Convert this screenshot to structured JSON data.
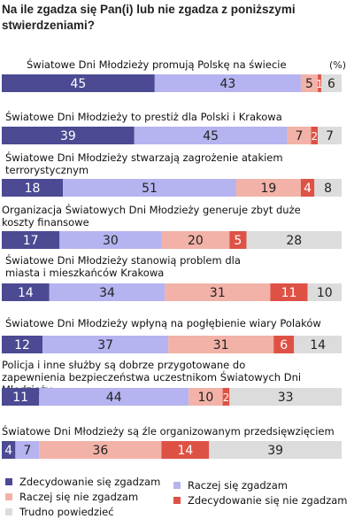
{
  "title": "Na ile zgadza się Pan(i) lub nie zgadza z poniższymi stwierdzeniami?",
  "unit_label": "(%)",
  "colors": {
    "zdecydowanie_zgadzam": "#4b4a93",
    "raczej_zgadzam": "#b5b3f0",
    "raczej_nie_zgadzam": "#f2b2a8",
    "zdecydowanie_nie_zgadzam": "#de5245",
    "trudno_powiedziec": "#dcdcdc"
  },
  "chart_data": {
    "type": "bar",
    "orientation": "horizontal",
    "stacked": true,
    "xlim": [
      0,
      100
    ],
    "grid": false,
    "legend_position": "bottom",
    "categories": [
      "Światowe Dni Młodzieży promują Polskę na świecie",
      "Światowe Dni Młodzieży to prestiż dla Polski i Krakowa",
      "Światowe Dni Młodzieży stwarzają zagrożenie atakiem terrorystycznym",
      "Organizacja Światowych Dni Młodzieży generuje zbyt duże koszty finansowe",
      "Światowe Dni Młodzieży stanowią problem dla miasta i mieszkańców Krakowa",
      "Światowe Dni Młodzieży wpłyną na pogłębienie wiary Polaków",
      "Policja i inne służby są dobrze przygotowane do zapewnienia bezpieczeństwa uczestnikom Światowych Dni Młodzieży",
      "Światowe Dni Młodzieży są źle organizowanym przedsięwzięciem"
    ],
    "series": [
      {
        "name": "Zdecydowanie się zgadzam",
        "values": [
          45,
          39,
          18,
          17,
          14,
          12,
          11,
          4
        ]
      },
      {
        "name": "Raczej się zgadzam",
        "values": [
          43,
          45,
          51,
          30,
          34,
          37,
          44,
          7
        ]
      },
      {
        "name": "Raczej się nie zgadzam",
        "values": [
          5,
          7,
          19,
          20,
          31,
          31,
          10,
          36
        ]
      },
      {
        "name": "Zdecydowanie się nie zgadzam",
        "values": [
          1,
          2,
          4,
          5,
          11,
          6,
          2,
          14
        ]
      },
      {
        "name": "Trudno powiedzieć",
        "values": [
          6,
          7,
          8,
          28,
          10,
          14,
          33,
          39
        ]
      }
    ]
  }
}
